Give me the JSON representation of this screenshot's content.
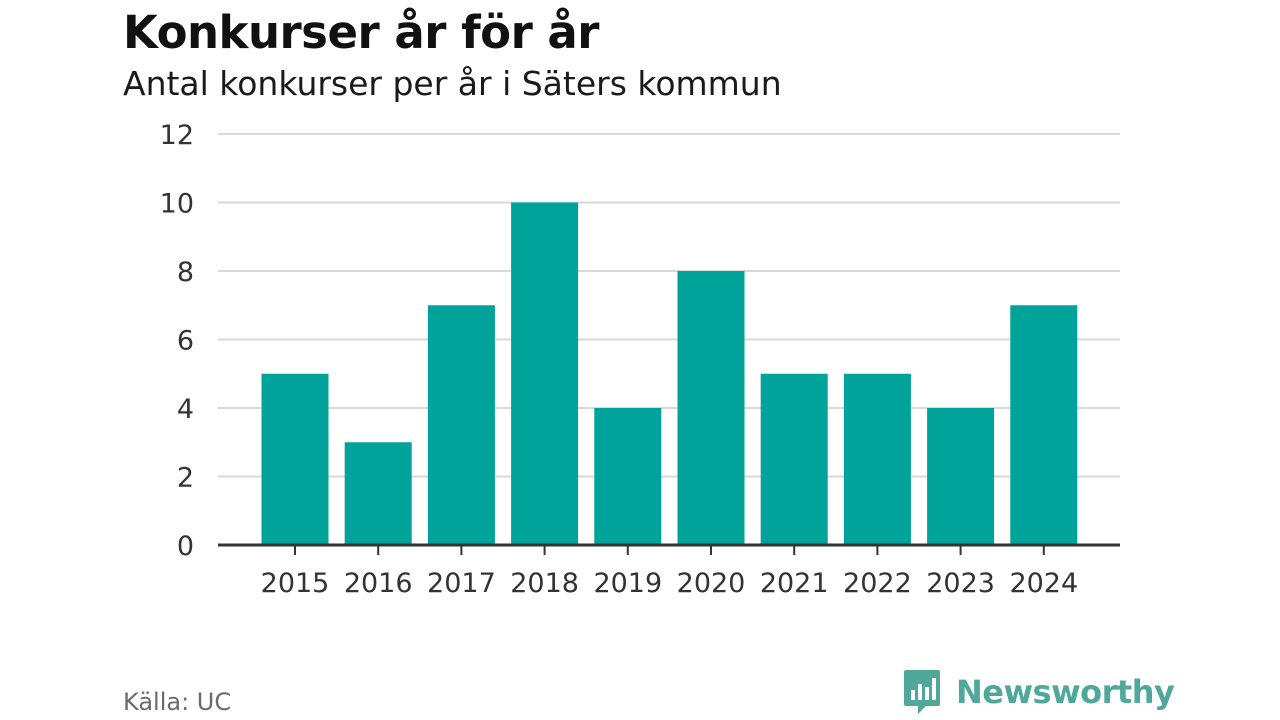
{
  "header": {
    "title": "Konkurser år för år",
    "subtitle": "Antal konkurser per år i Säters kommun"
  },
  "footer": {
    "source": "Källa: UC",
    "brand": "Newsworthy"
  },
  "colors": {
    "bar": "#00a39a",
    "grid": "#d9d9d9",
    "axis": "#333333",
    "brand": "#4fa89a"
  },
  "chart_data": {
    "type": "bar",
    "title": "Konkurser år för år",
    "subtitle": "Antal konkurser per år i Säters kommun",
    "xlabel": "",
    "ylabel": "",
    "categories": [
      "2015",
      "2016",
      "2017",
      "2018",
      "2019",
      "2020",
      "2021",
      "2022",
      "2023",
      "2024"
    ],
    "values": [
      5,
      3,
      7,
      10,
      4,
      8,
      5,
      5,
      4,
      7
    ],
    "ylim": [
      0,
      12
    ],
    "yticks": [
      0,
      2,
      4,
      6,
      8,
      10,
      12
    ],
    "grid": true,
    "legend": "none"
  }
}
